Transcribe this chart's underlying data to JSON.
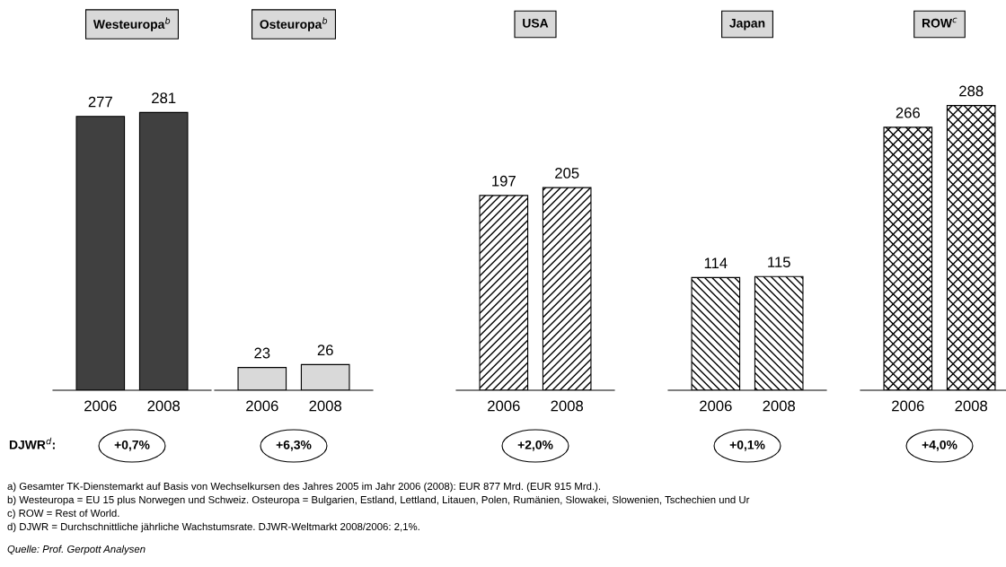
{
  "chart_data": [
    {
      "type": "bar",
      "title": "Westeuropa$^{b}$",
      "categories": [
        "2006",
        "2008"
      ],
      "values": [
        277,
        281
      ],
      "color": "#404040",
      "data_labels": true,
      "annotations": [
        "DJWR$^{d}$:",
        "+0,7%",
        "a) Gesamter TK-Dienstemarkt auf Basis von Wechselkursen des Jahres 2005 im Jahr 2006 (2008): EUR 877 Mrd. (EUR 915 Mrd.).",
        "b) Westeuropa = EU 15 plus Norwegen und Schweiz. Osteuropa = Bulgarien, Estland, Lettland, Litauen, Polen, Rumänien, Slowakei, Slowenien, Tschechien und Ur",
        "c) ROW = Rest of World.",
        "d) DJWR = Durchschnittliche jährliche Wachstumsrate. DJWR-Weltmarkt 2008/2006: 2,1%.",
        "Quelle: Prof. Gerpott Analysen"
      ]
    },
    {
      "type": "bar",
      "title": "Osteuropa$^{b}$",
      "categories": [
        "2006",
        "2008"
      ],
      "values": [
        23,
        26
      ],
      "color": "#d9d9d9",
      "data_labels": true,
      "annotations": [
        "+6,3%"
      ]
    },
    {
      "type": "bar",
      "title": "USA",
      "categories": [
        "2006",
        "2008"
      ],
      "values": [
        197,
        205
      ],
      "color": "#000000",
      "data_labels": true,
      "annotations": [
        "+2,0%"
      ]
    },
    {
      "type": "bar",
      "title": "Japan",
      "categories": [
        "2006",
        "2008"
      ],
      "values": [
        114,
        115
      ],
      "color": "#000000",
      "data_labels": true,
      "annotations": [
        "+0,1%"
      ]
    },
    {
      "type": "bar",
      "title": "ROW$^{c}$",
      "categories": [
        "2006",
        "2008"
      ],
      "values": [
        266,
        288
      ],
      "color": "#000000",
      "data_labels": true,
      "annotations": [
        "+4,0%"
      ]
    }
  ]
}
